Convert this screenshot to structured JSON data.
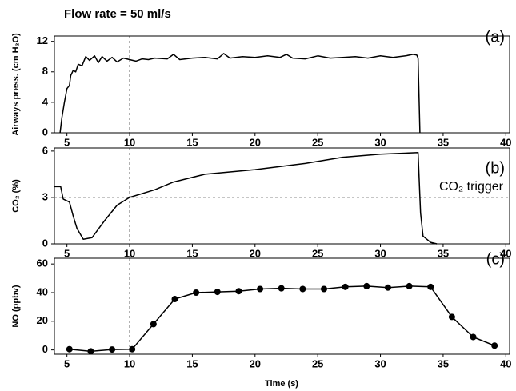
{
  "title": "Flow rate = 50 ml/s",
  "x_label": "Time (s)",
  "chart_data": [
    {
      "type": "line",
      "panel_label": "(a)",
      "y_label": "Airways press. (cm H₂O)",
      "xlim": [
        4,
        40.3
      ],
      "xticks": [
        5,
        10,
        15,
        20,
        25,
        30,
        35,
        40
      ],
      "ylim": [
        0,
        12.7
      ],
      "yticks": [
        0,
        4,
        8,
        12
      ],
      "vline": 10,
      "color": "#000000",
      "x": [
        4.45,
        4.6,
        4.8,
        5.0,
        5.2,
        5.3,
        5.5,
        5.7,
        5.9,
        6.2,
        6.5,
        6.8,
        7.2,
        7.5,
        7.8,
        8.2,
        8.6,
        9,
        9.5,
        10,
        10.5,
        11,
        11.5,
        12,
        13,
        13.5,
        14,
        15,
        16,
        17,
        17.5,
        18,
        19,
        20,
        21,
        22,
        22.5,
        23,
        24,
        25,
        26,
        27,
        28,
        29,
        30,
        31,
        32,
        32.6,
        32.9,
        33.0,
        33.15
      ],
      "values": [
        0,
        2,
        4,
        5.8,
        6.2,
        7.5,
        8.2,
        8,
        9,
        8.8,
        10,
        9.5,
        10.1,
        9.2,
        10,
        9.4,
        9.9,
        9.3,
        9.8,
        9.6,
        9.4,
        9.7,
        9.6,
        9.8,
        9.7,
        10.3,
        9.6,
        9.8,
        9.9,
        9.7,
        10.4,
        9.8,
        10,
        9.9,
        10.1,
        9.9,
        10.3,
        9.8,
        9.7,
        10.1,
        9.8,
        9.9,
        10,
        9.8,
        10.1,
        9.9,
        10.1,
        10.3,
        10.2,
        9.8,
        0
      ]
    },
    {
      "type": "line",
      "panel_label": "(b)",
      "y_label": "CO₂ (%)",
      "xlim": [
        4,
        40.3
      ],
      "xticks": [
        5,
        10,
        15,
        20,
        25,
        30,
        35,
        40
      ],
      "ylim": [
        0,
        6.2
      ],
      "yticks": [
        0,
        3,
        6
      ],
      "vline": 10,
      "hline": 3,
      "hline_label": "CO₂ trigger",
      "color": "#000000",
      "x": [
        4,
        4.5,
        4.7,
        5.2,
        5.5,
        5.8,
        6.3,
        7,
        8,
        9,
        10,
        12,
        13.5,
        16,
        20,
        24,
        27,
        30,
        33,
        33.2,
        33.4,
        34,
        34.5
      ],
      "values": [
        3.7,
        3.7,
        2.9,
        2.7,
        1.8,
        1,
        0.3,
        0.4,
        1.5,
        2.5,
        3,
        3.5,
        4,
        4.5,
        4.8,
        5.2,
        5.6,
        5.8,
        5.9,
        2,
        0.5,
        0.1,
        0
      ]
    },
    {
      "type": "line",
      "panel_label": "(c)",
      "y_label": "NO (ppbv)",
      "markers": true,
      "xlim": [
        4,
        40.3
      ],
      "xticks": [
        5,
        10,
        15,
        20,
        25,
        30,
        35,
        40
      ],
      "ylim": [
        -3,
        64
      ],
      "yticks": [
        0,
        20,
        40,
        60
      ],
      "vline": 10,
      "color": "#000000",
      "x": [
        5.2,
        6.9,
        8.6,
        10.2,
        11.9,
        13.6,
        15.3,
        17,
        18.7,
        20.4,
        22.1,
        23.8,
        25.5,
        27.2,
        28.9,
        30.6,
        32.3,
        34,
        35.7,
        37.4,
        39.1
      ],
      "values": [
        0.5,
        -1,
        0.3,
        0.5,
        18,
        35.5,
        40,
        40.5,
        41,
        42.5,
        43,
        42.5,
        42.5,
        44,
        44.5,
        43.5,
        44.5,
        44,
        23,
        9,
        3
      ]
    }
  ]
}
